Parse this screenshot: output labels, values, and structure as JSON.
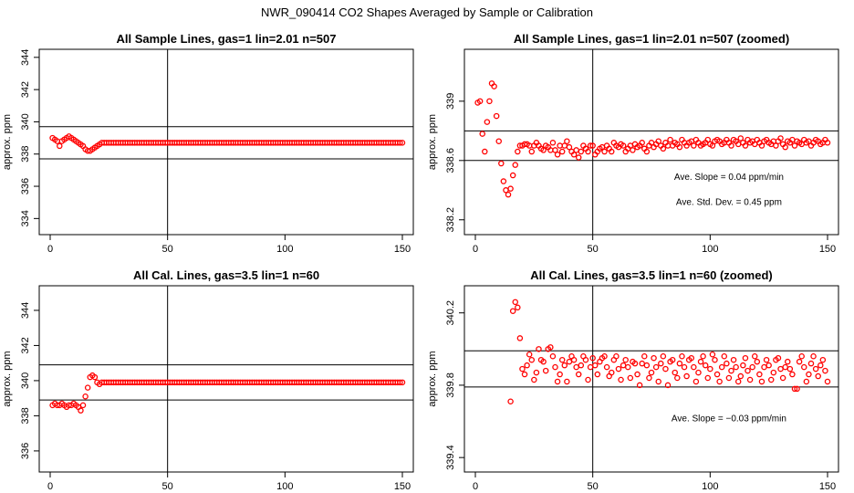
{
  "main_title": "NWR_090414  CO2 Shapes Averaged by Sample or Calibration",
  "colors": {
    "marker": "#ff0000",
    "axis": "#000000",
    "background": "#ffffff"
  },
  "chart_data": [
    {
      "type": "scatter",
      "title": "All Sample Lines, gas=1 lin=2.01 n=507",
      "ylabel": "approx. ppm",
      "xlabel": "",
      "xlim": [
        0,
        150
      ],
      "ylim": [
        333,
        344.5
      ],
      "x_ticks": [
        0,
        50,
        100,
        150
      ],
      "y_ticks": [
        334,
        336,
        338,
        340,
        342,
        344
      ],
      "ref_lines": {
        "vertical": 50,
        "horizontal": [
          339.7,
          337.7
        ]
      },
      "series": [
        {
          "x_start": 1,
          "x_end": 150,
          "values": [
            339.0,
            338.9,
            338.8,
            338.5,
            338.8,
            338.9,
            339.0,
            339.1,
            339.0,
            338.9,
            338.8,
            338.7,
            338.6,
            338.5,
            338.3,
            338.2,
            338.2,
            338.3,
            338.4,
            338.5,
            338.6,
            338.7,
            338.7,
            338.7,
            338.7,
            338.7,
            338.7,
            338.7,
            338.7,
            338.7
          ],
          "fill_value": 338.7
        }
      ],
      "annotations": []
    },
    {
      "type": "scatter",
      "title": "All Sample Lines, gas=1 lin=2.01 n=507 (zoomed)",
      "ylabel": "approx. ppm",
      "xlabel": "",
      "xlim": [
        0,
        150
      ],
      "ylim": [
        338.1,
        339.35
      ],
      "x_ticks": [
        0,
        50,
        100,
        150
      ],
      "y_ticks": [
        338.2,
        338.6,
        339.0
      ],
      "ref_lines": {
        "vertical": 50,
        "horizontal": [
          338.8,
          338.6
        ]
      },
      "series": [
        {
          "x_start": 1,
          "x_end": 150,
          "values": [
            338.99,
            339.0,
            338.78,
            338.66,
            338.86,
            339.0,
            339.12,
            339.1,
            338.9,
            338.73,
            338.58,
            338.46,
            338.4,
            338.37,
            338.41,
            338.5,
            338.57,
            338.66,
            338.7,
            338.7,
            338.71,
            338.71,
            338.7,
            338.66,
            338.7,
            338.72,
            338.7,
            338.68,
            338.67,
            338.7,
            338.69,
            338.67,
            338.72,
            338.67,
            338.64,
            338.7,
            338.66,
            338.7,
            338.73,
            338.69,
            338.66,
            338.64,
            338.67,
            338.62,
            338.66,
            338.7,
            338.68,
            338.66,
            338.7,
            338.7,
            338.64,
            338.66,
            338.68,
            338.69,
            338.66,
            338.7,
            338.68,
            338.66,
            338.72,
            338.7,
            338.69,
            338.71,
            338.7,
            338.66,
            338.68,
            338.7,
            338.67,
            338.71,
            338.69,
            338.7,
            338.72,
            338.68,
            338.66,
            338.7,
            338.72,
            338.69,
            338.71,
            338.73,
            338.7,
            338.68,
            338.72,
            338.7,
            338.74,
            338.7,
            338.72,
            338.71,
            338.69,
            338.74,
            338.72,
            338.7,
            338.72,
            338.73,
            338.7,
            338.74,
            338.72,
            338.7,
            338.71,
            338.72,
            338.74,
            338.71,
            338.7,
            338.73,
            338.74,
            338.73,
            338.71,
            338.72,
            338.74,
            338.72,
            338.7,
            338.74,
            338.73,
            338.71,
            338.75,
            338.72,
            338.7,
            338.74,
            338.72,
            338.73,
            338.71,
            338.74,
            338.72,
            338.7,
            338.73,
            338.74,
            338.72,
            338.71,
            338.73,
            338.7,
            338.73,
            338.75,
            338.71,
            338.69,
            338.73,
            338.72,
            338.74,
            338.7,
            338.73,
            338.72,
            338.71,
            338.74,
            338.72,
            338.73,
            338.7,
            338.72,
            338.74,
            338.73,
            338.71,
            338.72,
            338.74,
            338.72
          ]
        }
      ],
      "annotations": [
        {
          "text": "Ave. Slope =  0.04  ppm/min",
          "x": 108,
          "y": 338.47
        },
        {
          "text": "Ave. Std. Dev. =  0.45  ppm",
          "x": 108,
          "y": 338.3
        }
      ]
    },
    {
      "type": "scatter",
      "title": "All Cal. Lines, gas=3.5 lin=1 n=60",
      "ylabel": "approx. ppm",
      "xlabel": "",
      "xlim": [
        0,
        150
      ],
      "ylim": [
        334.8,
        345.4
      ],
      "x_ticks": [
        0,
        50,
        100,
        150
      ],
      "y_ticks": [
        336,
        338,
        340,
        342,
        344
      ],
      "ref_lines": {
        "vertical": 50,
        "horizontal": [
          340.9,
          338.9
        ]
      },
      "series": [
        {
          "x_start": 1,
          "x_end": 150,
          "values": [
            338.6,
            338.7,
            338.6,
            338.6,
            338.7,
            338.6,
            338.5,
            338.6,
            338.6,
            338.7,
            338.6,
            338.5,
            338.3,
            338.6,
            339.1,
            339.6,
            340.2,
            340.3,
            340.2,
            339.9,
            339.8,
            339.9,
            339.9,
            339.9
          ],
          "fill_value": 339.9
        }
      ],
      "annotations": []
    },
    {
      "type": "scatter",
      "title": "All Cal. Lines, gas=3.5 lin=1 n=60 (zoomed)",
      "ylabel": "approx. ppm",
      "xlabel": "",
      "xlim": [
        0,
        150
      ],
      "ylim": [
        339.32,
        340.35
      ],
      "x_ticks": [
        0,
        50,
        100,
        150
      ],
      "y_ticks": [
        339.4,
        339.8,
        340.2
      ],
      "ref_lines": {
        "vertical": 50,
        "horizontal": [
          339.99,
          339.79
        ]
      },
      "series": [
        {
          "x_start": 15,
          "x_end": 150,
          "values": [
            339.71,
            340.21,
            340.26,
            340.23,
            340.06,
            339.89,
            339.86,
            339.91,
            339.97,
            339.94,
            339.83,
            339.87,
            340.0,
            339.94,
            339.93,
            339.88,
            340.0,
            340.01,
            339.96,
            339.9,
            339.82,
            339.86,
            339.94,
            339.91,
            339.82,
            339.93,
            339.96,
            339.94,
            339.9,
            339.86,
            339.91,
            339.96,
            339.94,
            339.83,
            339.9,
            339.95,
            339.91,
            339.86,
            339.93,
            339.95,
            339.96,
            339.9,
            339.85,
            339.87,
            339.94,
            339.96,
            339.89,
            339.83,
            339.91,
            339.94,
            339.9,
            339.84,
            339.93,
            339.92,
            339.86,
            339.8,
            339.92,
            339.96,
            339.91,
            339.84,
            339.87,
            339.95,
            339.9,
            339.82,
            339.92,
            339.96,
            339.89,
            339.8,
            339.93,
            339.94,
            339.87,
            339.84,
            339.92,
            339.96,
            339.9,
            339.85,
            339.94,
            339.95,
            339.9,
            339.82,
            339.87,
            339.93,
            339.96,
            339.91,
            339.84,
            339.89,
            339.97,
            339.94,
            339.86,
            339.82,
            339.9,
            339.96,
            339.92,
            339.84,
            339.88,
            339.94,
            339.9,
            339.82,
            339.85,
            339.91,
            339.95,
            339.88,
            339.83,
            339.9,
            339.96,
            339.93,
            339.86,
            339.82,
            339.9,
            339.94,
            339.91,
            339.83,
            339.87,
            339.94,
            339.95,
            339.89,
            339.84,
            339.9,
            339.93,
            339.89,
            339.86,
            339.78,
            339.78,
            339.93,
            339.96,
            339.9,
            339.82,
            339.86,
            339.92,
            339.96,
            339.89,
            339.85,
            339.91,
            339.94,
            339.88,
            339.82
          ]
        }
      ],
      "annotations": [
        {
          "text": "Ave. Slope = −0.03  ppm/min",
          "x": 108,
          "y": 339.6
        }
      ]
    }
  ]
}
